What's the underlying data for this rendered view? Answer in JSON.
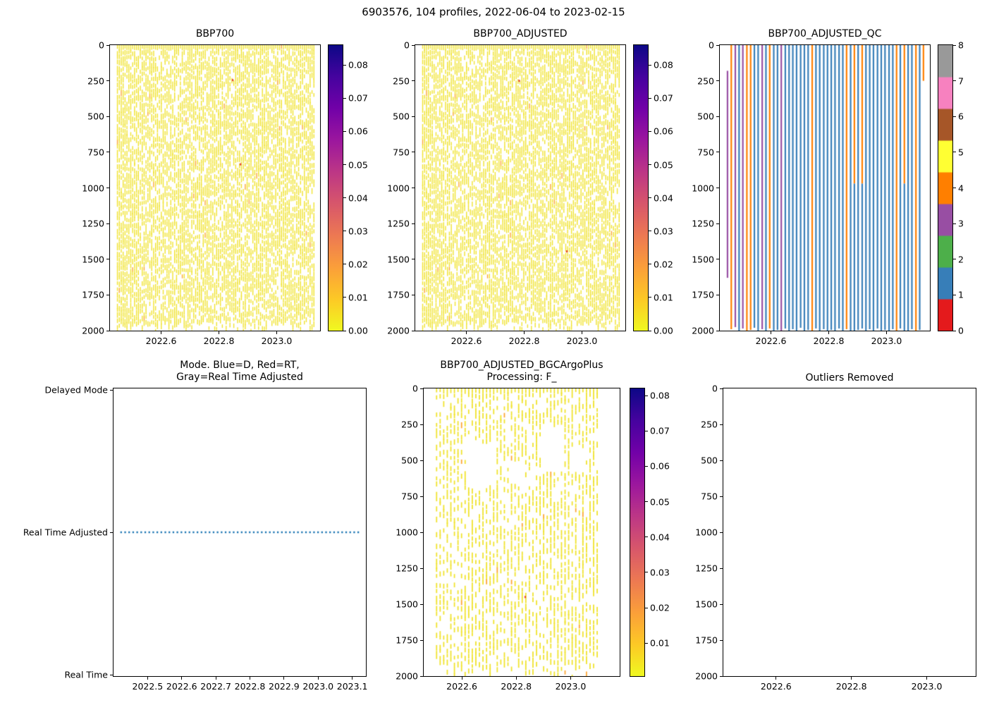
{
  "figure": {
    "suptitle": "6903576, 104 profiles, 2022-06-04 to 2023-02-15"
  },
  "colors": {
    "background": "#ffffff",
    "axis_color": "#000000",
    "plasma_r": [
      "#0d0887",
      "#46039f",
      "#7201a8",
      "#9c179e",
      "#bd3786",
      "#d8576b",
      "#ed7953",
      "#fb9f3a",
      "#fdc926",
      "#f0f921"
    ],
    "qc_flag_colors": [
      "#e41a1c",
      "#377eb8",
      "#4daf4a",
      "#984ea3",
      "#ff7f00",
      "#ffff33",
      "#a65628",
      "#f781bf",
      "#999999"
    ],
    "stripe_yellow": "#f0e32e",
    "stripe_accent": "#fca636",
    "anomaly_red": "#e8443a",
    "mode_line_blue": "#1f77b4"
  },
  "chart_data": [
    {
      "id": "bbp700",
      "type": "heatmap",
      "title": "BBP700",
      "xlim": [
        2022.423,
        2023.15
      ],
      "x_ticks": [
        2022.6,
        2022.8,
        2023.0
      ],
      "x_tick_labels": [
        "2022.6",
        "2022.8",
        "2023.0"
      ],
      "ylim": [
        0,
        2000
      ],
      "y_inverted": true,
      "y_ticks": [
        0,
        250,
        500,
        750,
        1000,
        1250,
        1500,
        1750,
        2000
      ],
      "y_tick_labels": [
        "0",
        "250",
        "500",
        "750",
        "1000",
        "1250",
        "1500",
        "1750",
        "2000"
      ],
      "colorbar": {
        "vmin": 0,
        "vmax": 0.086,
        "ticks": [
          0,
          0.01,
          0.02,
          0.03,
          0.04,
          0.05,
          0.06,
          0.07,
          0.08
        ],
        "tick_labels": [
          "0.00",
          "0.01",
          "0.02",
          "0.03",
          "0.04",
          "0.05",
          "0.06",
          "0.07",
          "0.08"
        ]
      },
      "profiles": {
        "count": 104,
        "x_start": 2022.447,
        "x_end": 2023.127,
        "depth_min": 0,
        "depth_max": 2000,
        "typical_value": 0.0005,
        "dash_keep": 0.78,
        "stripe_width": 1.4,
        "dense_first": 6
      },
      "anomalies": [
        {
          "x": 2022.845,
          "depth": 245
        },
        {
          "x": 2022.872,
          "depth": 835
        }
      ],
      "seed": 7
    },
    {
      "id": "bbp700_adjusted",
      "type": "heatmap",
      "title": "BBP700_ADJUSTED",
      "xlim": [
        2022.423,
        2023.15
      ],
      "x_ticks": [
        2022.6,
        2022.8,
        2023.0
      ],
      "x_tick_labels": [
        "2022.6",
        "2022.8",
        "2023.0"
      ],
      "ylim": [
        0,
        2000
      ],
      "y_inverted": true,
      "y_ticks": [
        0,
        250,
        500,
        750,
        1000,
        1250,
        1500,
        1750,
        2000
      ],
      "y_tick_labels": [
        "0",
        "250",
        "500",
        "750",
        "1000",
        "1250",
        "1500",
        "1750",
        "2000"
      ],
      "colorbar": {
        "vmin": 0,
        "vmax": 0.086,
        "ticks": [
          0,
          0.01,
          0.02,
          0.03,
          0.04,
          0.05,
          0.06,
          0.07,
          0.08
        ],
        "tick_labels": [
          "0.00",
          "0.01",
          "0.02",
          "0.03",
          "0.04",
          "0.05",
          "0.06",
          "0.07",
          "0.08"
        ]
      },
      "profiles": {
        "count": 104,
        "x_start": 2022.447,
        "x_end": 2023.127,
        "depth_min": 0,
        "depth_max": 2000,
        "typical_value": 0.0005,
        "dash_keep": 0.78,
        "stripe_width": 1.4,
        "dense_first": 6
      },
      "anomalies": [
        {
          "x": 2022.78,
          "depth": 250
        },
        {
          "x": 2022.945,
          "depth": 1445
        }
      ],
      "seed": 7
    },
    {
      "id": "qc",
      "type": "heatmap",
      "title": "BBP700_ADJUSTED_QC",
      "xlim": [
        2022.423,
        2023.15
      ],
      "x_ticks": [
        2022.6,
        2022.8,
        2023.0
      ],
      "x_tick_labels": [
        "2022.6",
        "2022.8",
        "2023.0"
      ],
      "ylim": [
        0,
        2000
      ],
      "y_inverted": true,
      "y_ticks": [
        0,
        250,
        500,
        750,
        1000,
        1250,
        1500,
        1750,
        2000
      ],
      "y_tick_labels": [
        "0",
        "250",
        "500",
        "750",
        "1000",
        "1250",
        "1500",
        "1750",
        "2000"
      ],
      "colorbar": {
        "type": "discrete",
        "ticks": [
          0,
          1,
          2,
          3,
          4,
          5,
          6,
          7,
          8
        ],
        "tick_labels": [
          "0",
          "1",
          "2",
          "3",
          "4",
          "5",
          "6",
          "7",
          "8"
        ]
      },
      "stripes": [
        [
          2022.447,
          [
            [
              180,
              1630,
              3
            ]
          ]
        ],
        [
          2022.46,
          [
            [
              0,
              1990,
              4
            ]
          ]
        ],
        [
          2022.474,
          [
            [
              0,
              1975,
              3
            ]
          ]
        ],
        [
          2022.487,
          [
            [
              0,
              2000,
              1
            ]
          ]
        ],
        [
          2022.5,
          [
            [
              0,
              1985,
              3
            ]
          ]
        ],
        [
          2022.514,
          [
            [
              0,
              2000,
              4
            ]
          ]
        ],
        [
          2022.527,
          [
            [
              0,
              1995,
              4
            ]
          ]
        ],
        [
          2022.54,
          [
            [
              0,
              1980,
              1
            ]
          ]
        ],
        [
          2022.553,
          [
            [
              0,
              2000,
              1
            ]
          ]
        ],
        [
          2022.567,
          [
            [
              0,
              1990,
              3
            ]
          ]
        ],
        [
          2022.58,
          [
            [
              0,
              2000,
              1
            ]
          ]
        ],
        [
          2022.593,
          [
            [
              0,
              1985,
              4
            ]
          ]
        ],
        [
          2022.607,
          [
            [
              0,
              2000,
              1
            ]
          ]
        ],
        [
          2022.62,
          [
            [
              0,
              1995,
              1
            ]
          ]
        ],
        [
          2022.633,
          [
            [
              0,
              2000,
              3
            ]
          ]
        ],
        [
          2022.647,
          [
            [
              0,
              1985,
              1
            ]
          ]
        ],
        [
          2022.66,
          [
            [
              0,
              2000,
              1
            ]
          ]
        ],
        [
          2022.673,
          [
            [
              0,
              1990,
              1
            ]
          ]
        ],
        [
          2022.686,
          [
            [
              0,
              2000,
              1
            ]
          ]
        ],
        [
          2022.7,
          [
            [
              0,
              1980,
              1
            ]
          ]
        ],
        [
          2022.713,
          [
            [
              0,
              2000,
              1
            ]
          ]
        ],
        [
          2022.726,
          [
            [
              0,
              1995,
              1
            ]
          ]
        ],
        [
          2022.74,
          [
            [
              0,
              2000,
              4
            ]
          ]
        ],
        [
          2022.753,
          [
            [
              0,
              1985,
              1
            ]
          ]
        ],
        [
          2022.766,
          [
            [
              0,
              2000,
              1
            ]
          ]
        ],
        [
          2022.78,
          [
            [
              0,
              1990,
              1
            ]
          ]
        ],
        [
          2022.793,
          [
            [
              0,
              2000,
              1
            ]
          ]
        ],
        [
          2022.806,
          [
            [
              0,
              1995,
              1
            ]
          ]
        ],
        [
          2022.819,
          [
            [
              0,
              2000,
              1
            ]
          ]
        ],
        [
          2022.833,
          [
            [
              0,
              1985,
              1
            ]
          ]
        ],
        [
          2022.846,
          [
            [
              0,
              2000,
              1
            ]
          ]
        ],
        [
          2022.859,
          [
            [
              0,
              1990,
              4
            ]
          ]
        ],
        [
          2022.873,
          [
            [
              0,
              2000,
              1
            ]
          ]
        ],
        [
          2022.886,
          [
            [
              0,
              970,
              4
            ],
            [
              970,
              2000,
              1
            ]
          ]
        ],
        [
          2022.899,
          [
            [
              0,
              1995,
              1
            ]
          ]
        ],
        [
          2022.913,
          [
            [
              0,
              970,
              4
            ],
            [
              970,
              1985,
              1
            ]
          ]
        ],
        [
          2022.926,
          [
            [
              0,
              2000,
              1
            ]
          ]
        ],
        [
          2022.939,
          [
            [
              0,
              1990,
              1
            ]
          ]
        ],
        [
          2022.952,
          [
            [
              0,
              2000,
              1
            ]
          ]
        ],
        [
          2022.966,
          [
            [
              0,
              1985,
              1
            ]
          ]
        ],
        [
          2022.979,
          [
            [
              0,
              2000,
              1
            ]
          ]
        ],
        [
          2022.992,
          [
            [
              0,
              1995,
              1
            ]
          ]
        ],
        [
          2023.006,
          [
            [
              0,
              2000,
              1
            ]
          ]
        ],
        [
          2023.019,
          [
            [
              0,
              1990,
              1
            ]
          ]
        ],
        [
          2023.032,
          [
            [
              0,
              2000,
              4
            ]
          ]
        ],
        [
          2023.045,
          [
            [
              0,
              1985,
              1
            ]
          ]
        ],
        [
          2023.059,
          [
            [
              0,
              970,
              4
            ],
            [
              970,
              2000,
              1
            ]
          ]
        ],
        [
          2023.072,
          [
            [
              0,
              2000,
              1
            ]
          ]
        ],
        [
          2023.085,
          [
            [
              0,
              1990,
              1
            ]
          ]
        ],
        [
          2023.099,
          [
            [
              0,
              2000,
              4
            ]
          ]
        ],
        [
          2023.112,
          [
            [
              0,
              1995,
              1
            ]
          ]
        ],
        [
          2023.125,
          [
            [
              0,
              250,
              4
            ]
          ]
        ]
      ]
    },
    {
      "id": "mode",
      "type": "line",
      "title_lines": [
        "Mode. Blue=D, Red=RT,",
        "Gray=Real Time Adjusted"
      ],
      "xlim": [
        2022.4,
        2023.14
      ],
      "x_ticks": [
        2022.5,
        2022.6,
        2022.7,
        2022.8,
        2022.9,
        2023.0,
        2023.1
      ],
      "x_tick_labels": [
        "2022.5",
        "2022.6",
        "2022.7",
        "2022.8",
        "2022.9",
        "2023.0",
        "2023.1"
      ],
      "y_categories": [
        "Delayed Mode",
        "Real Time Adjusted",
        "Real Time"
      ],
      "series": [
        {
          "name": "processing-mode",
          "value": "Real Time Adjusted",
          "x_start": 2022.42,
          "x_end": 2023.12,
          "style": "dotted"
        }
      ]
    },
    {
      "id": "bgc",
      "type": "heatmap",
      "title_lines": [
        "BBP700_ADJUSTED_BGCArgoPlus",
        "Processing: F_"
      ],
      "xlim": [
        2022.46,
        2023.18
      ],
      "x_ticks": [
        2022.6,
        2022.8,
        2023.0
      ],
      "x_tick_labels": [
        "2022.6",
        "2022.8",
        "2023.0"
      ],
      "ylim": [
        0,
        2000
      ],
      "y_inverted": true,
      "y_ticks": [
        0,
        250,
        500,
        750,
        1000,
        1250,
        1500,
        1750,
        2000
      ],
      "y_tick_labels": [
        "0",
        "250",
        "500",
        "750",
        "1000",
        "1250",
        "1500",
        "1750",
        "2000"
      ],
      "colorbar": {
        "vmin": 0.0007,
        "vmax": 0.082,
        "ticks": [
          0.01,
          0.02,
          0.03,
          0.04,
          0.05,
          0.06,
          0.07,
          0.08
        ],
        "tick_labels": [
          "0.01",
          "0.02",
          "0.03",
          "0.04",
          "0.05",
          "0.06",
          "0.07",
          "0.08"
        ]
      },
      "profiles": {
        "count": 46,
        "x_start": 2022.505,
        "x_end": 2023.095,
        "depth_min": 0,
        "depth_max": 2000,
        "typical_value": 0.0005,
        "dash_keep": 0.62,
        "stripe_width": 1.8
      },
      "gap_regions": [
        [
          2022.615,
          2022.725,
          370,
          670
        ],
        [
          2022.77,
          2022.825,
          490,
          640
        ],
        [
          2022.895,
          2022.975,
          230,
          570
        ],
        [
          2023.0,
          2023.05,
          390,
          560
        ]
      ],
      "anomalies": [
        {
          "x": 2022.83,
          "depth": 1450
        }
      ],
      "seed": 11
    },
    {
      "id": "outliers",
      "type": "heatmap",
      "title": "Outliers Removed",
      "empty": true,
      "xlim": [
        2022.46,
        2023.13
      ],
      "x_ticks": [
        2022.6,
        2022.8,
        2023.0
      ],
      "x_tick_labels": [
        "2022.6",
        "2022.8",
        "2023.0"
      ],
      "ylim": [
        0,
        2000
      ],
      "y_inverted": true,
      "y_ticks": [
        0,
        250,
        500,
        750,
        1000,
        1250,
        1500,
        1750,
        2000
      ],
      "y_tick_labels": [
        "0",
        "250",
        "500",
        "750",
        "1000",
        "1250",
        "1500",
        "1750",
        "2000"
      ]
    }
  ]
}
